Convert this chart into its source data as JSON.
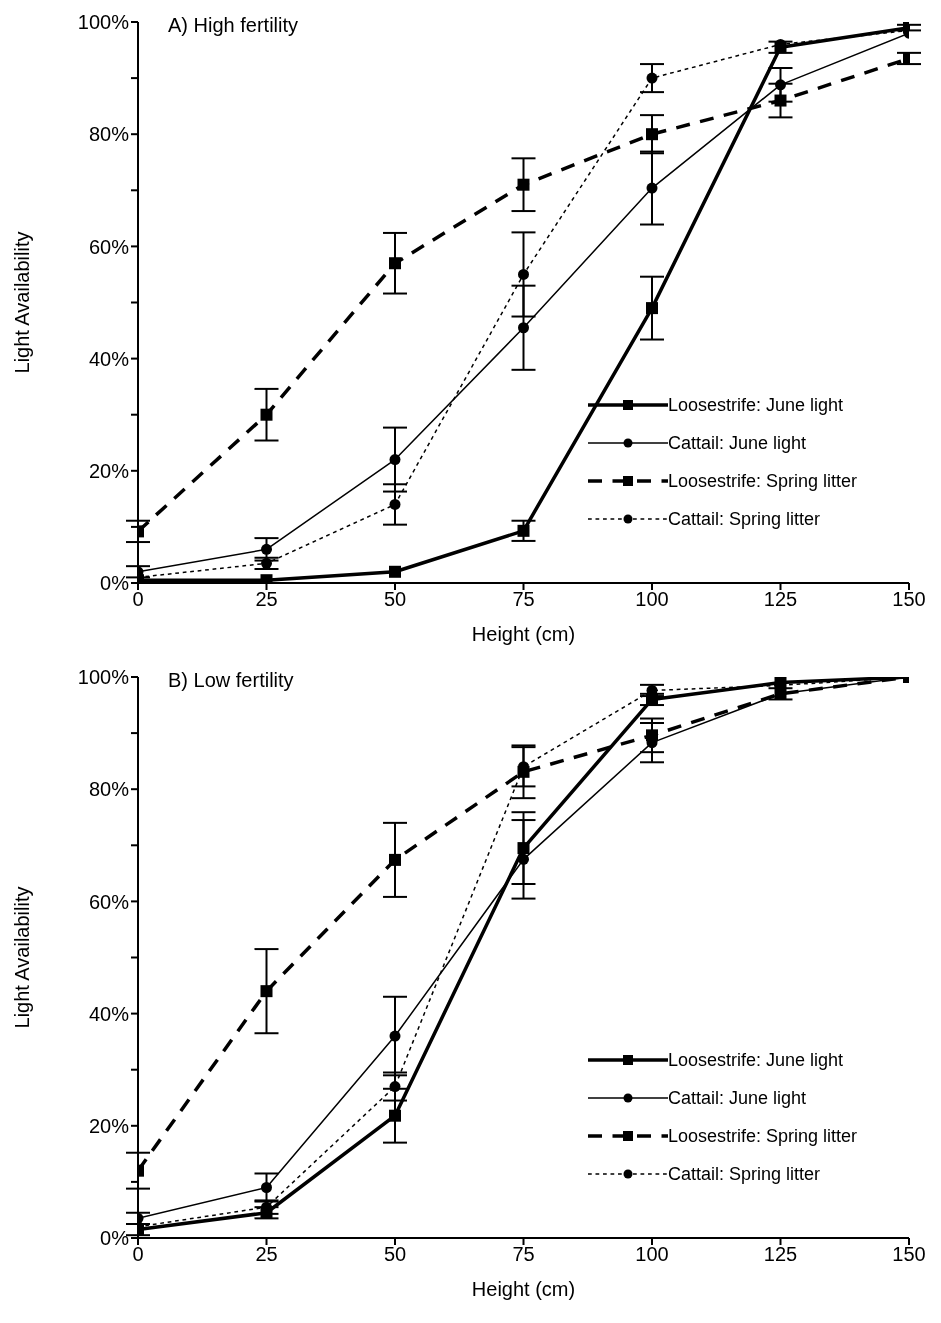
{
  "chart_data": [
    {
      "type": "line",
      "title": "A) High fertility",
      "xlabel": "Height (cm)",
      "ylabel": "Light Availability",
      "x": [
        0,
        25,
        50,
        75,
        100,
        125,
        150
      ],
      "xlim": [
        0,
        150
      ],
      "xticks": [
        0,
        25,
        50,
        75,
        100,
        125,
        150
      ],
      "ylim": [
        0,
        100
      ],
      "yticks": [
        {
          "value": 0,
          "label": "0%"
        },
        {
          "value": 10,
          "label": null
        },
        {
          "value": 20,
          "label": "20%"
        },
        {
          "value": 30,
          "label": null
        },
        {
          "value": 40,
          "label": "40%"
        },
        {
          "value": 50,
          "label": null
        },
        {
          "value": 60,
          "label": "60%"
        },
        {
          "value": 70,
          "label": null
        },
        {
          "value": 80,
          "label": "80%"
        },
        {
          "value": 90,
          "label": null
        },
        {
          "value": 100,
          "label": "100%"
        }
      ],
      "grid": false,
      "legend": "bottom right",
      "series": [
        {
          "name": "Loosestrife: June light",
          "color": "#000000",
          "marker": "square",
          "line_style": "solid",
          "values": [
            0.5,
            0.5,
            2,
            9.3,
            49,
            95.5,
            99
          ],
          "errors": [
            null,
            null,
            null,
            1.8,
            5.6,
            1,
            0.5
          ]
        },
        {
          "name": "Cattail: June light",
          "color": "#000000",
          "marker": "circle",
          "line_style": "solid",
          "values": [
            2,
            6,
            22,
            45.5,
            70.4,
            88.8,
            98
          ],
          "errors": [
            1,
            2,
            5.7,
            7.5,
            6.5,
            3,
            null
          ]
        },
        {
          "name": "Loosestrife: Spring litter",
          "color": "#000000",
          "marker": "square",
          "line_style": "dashed",
          "values": [
            9.2,
            30,
            57,
            71,
            80,
            86,
            93.5
          ],
          "errors": [
            1.9,
            4.6,
            5.4,
            4.7,
            3.4,
            3,
            1
          ]
        },
        {
          "name": "Cattail: Spring litter",
          "color": "#000000",
          "marker": "circle",
          "line_style": "dotted",
          "values": [
            1,
            3.5,
            14,
            55,
            90,
            96,
            98.5
          ],
          "errors": [
            null,
            1,
            3.6,
            7.5,
            2.5,
            null,
            null
          ]
        }
      ]
    },
    {
      "type": "line",
      "title": "B) Low fertility",
      "xlabel": "Height (cm)",
      "ylabel": "Light Availability",
      "x": [
        0,
        25,
        50,
        75,
        100,
        125,
        150
      ],
      "xlim": [
        0,
        150
      ],
      "xticks": [
        0,
        25,
        50,
        75,
        100,
        125,
        150
      ],
      "ylim": [
        0,
        100
      ],
      "yticks": [
        {
          "value": 0,
          "label": "0%"
        },
        {
          "value": 10,
          "label": null
        },
        {
          "value": 20,
          "label": "20%"
        },
        {
          "value": 30,
          "label": null
        },
        {
          "value": 40,
          "label": "40%"
        },
        {
          "value": 50,
          "label": null
        },
        {
          "value": 60,
          "label": "60%"
        },
        {
          "value": 70,
          "label": null
        },
        {
          "value": 80,
          "label": "80%"
        },
        {
          "value": 90,
          "label": null
        },
        {
          "value": 100,
          "label": "100%"
        }
      ],
      "grid": false,
      "legend": "bottom right",
      "series": [
        {
          "name": "Loosestrife: June light",
          "color": "#000000",
          "marker": "square",
          "line_style": "solid",
          "values": [
            1.5,
            4.5,
            21.8,
            69.5,
            96,
            99,
            100
          ],
          "errors": [
            1,
            1,
            4.8,
            6.4,
            1,
            null,
            null
          ]
        },
        {
          "name": "Cattail: June light",
          "color": "#000000",
          "marker": "circle",
          "line_style": "solid",
          "values": [
            3.5,
            9,
            36,
            67.5,
            88.3,
            97,
            100
          ],
          "errors": [
            1,
            2.5,
            7,
            7,
            3.5,
            null,
            null
          ]
        },
        {
          "name": "Loosestrife: Spring litter",
          "color": "#000000",
          "marker": "square",
          "line_style": "dashed",
          "values": [
            12,
            44,
            67.4,
            83.1,
            89.6,
            97,
            100
          ],
          "errors": [
            3.2,
            7.5,
            6.6,
            4.7,
            3,
            1,
            null
          ]
        },
        {
          "name": "Cattail: Spring litter",
          "color": "#000000",
          "marker": "circle",
          "line_style": "dotted",
          "values": [
            2,
            5.5,
            27,
            84,
            97.6,
            98.5,
            100
          ],
          "errors": [
            null,
            1.2,
            2.5,
            3.5,
            1,
            null,
            null
          ]
        }
      ]
    }
  ]
}
